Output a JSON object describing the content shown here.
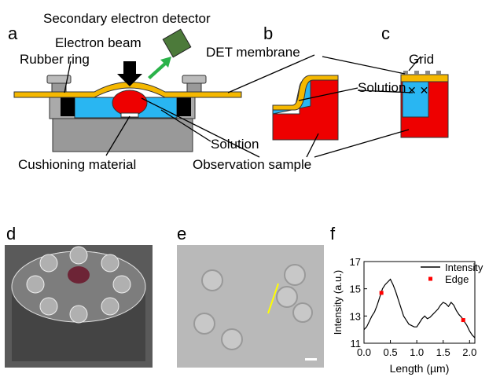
{
  "panels": {
    "a": "a",
    "b": "b",
    "c": "c",
    "d": "d",
    "e": "e",
    "f": "f"
  },
  "diagram": {
    "detector": "Secondary electron detector",
    "beam": "Electron beam",
    "ring": "Rubber ring",
    "membrane": "DET membrane",
    "grid": "Grid",
    "solution_bc": "Solution",
    "solution_a": "Solution",
    "cushion": "Cushioning material",
    "sample": "Observation sample"
  },
  "chart_data": {
    "type": "line",
    "xlabel": "Length (µm)",
    "ylabel": "Intensity (a.u.)",
    "xlim": [
      0,
      2.1
    ],
    "ylim": [
      11,
      17
    ],
    "xticks": [
      {
        "value": 0,
        "label": "0.0"
      },
      {
        "value": 0.5,
        "label": "0.5"
      },
      {
        "value": 1,
        "label": "1.0"
      },
      {
        "value": 1.5,
        "label": "1.5"
      },
      {
        "value": 2,
        "label": "2.0"
      }
    ],
    "yticks": [
      11,
      13,
      15,
      17
    ],
    "series": [
      {
        "name": "Intensity",
        "color": "#000000",
        "x": [
          0,
          0.05,
          0.1,
          0.15,
          0.2,
          0.25,
          0.3,
          0.35,
          0.4,
          0.45,
          0.5,
          0.55,
          0.6,
          0.65,
          0.7,
          0.75,
          0.8,
          0.85,
          0.9,
          0.95,
          1.0,
          1.05,
          1.1,
          1.15,
          1.2,
          1.25,
          1.3,
          1.35,
          1.4,
          1.45,
          1.5,
          1.55,
          1.6,
          1.65,
          1.7,
          1.75,
          1.8,
          1.85,
          1.9,
          1.95,
          2.0,
          2.05,
          2.1
        ],
        "values": [
          12.0,
          12.2,
          12.6,
          13.0,
          13.3,
          13.8,
          14.4,
          15.0,
          15.3,
          15.5,
          15.7,
          15.3,
          14.8,
          14.2,
          13.6,
          13.0,
          12.7,
          12.4,
          12.3,
          12.2,
          12.2,
          12.5,
          12.8,
          13.0,
          12.8,
          12.9,
          13.1,
          13.3,
          13.5,
          13.8,
          14.0,
          13.9,
          13.7,
          14.0,
          13.8,
          13.4,
          13.1,
          12.9,
          12.6,
          12.3,
          11.9,
          11.6,
          11.4
        ]
      },
      {
        "name": "Edge",
        "color": "#ff0000",
        "x": [
          0.33,
          1.88
        ],
        "values": [
          14.7,
          12.7
        ]
      }
    ]
  }
}
